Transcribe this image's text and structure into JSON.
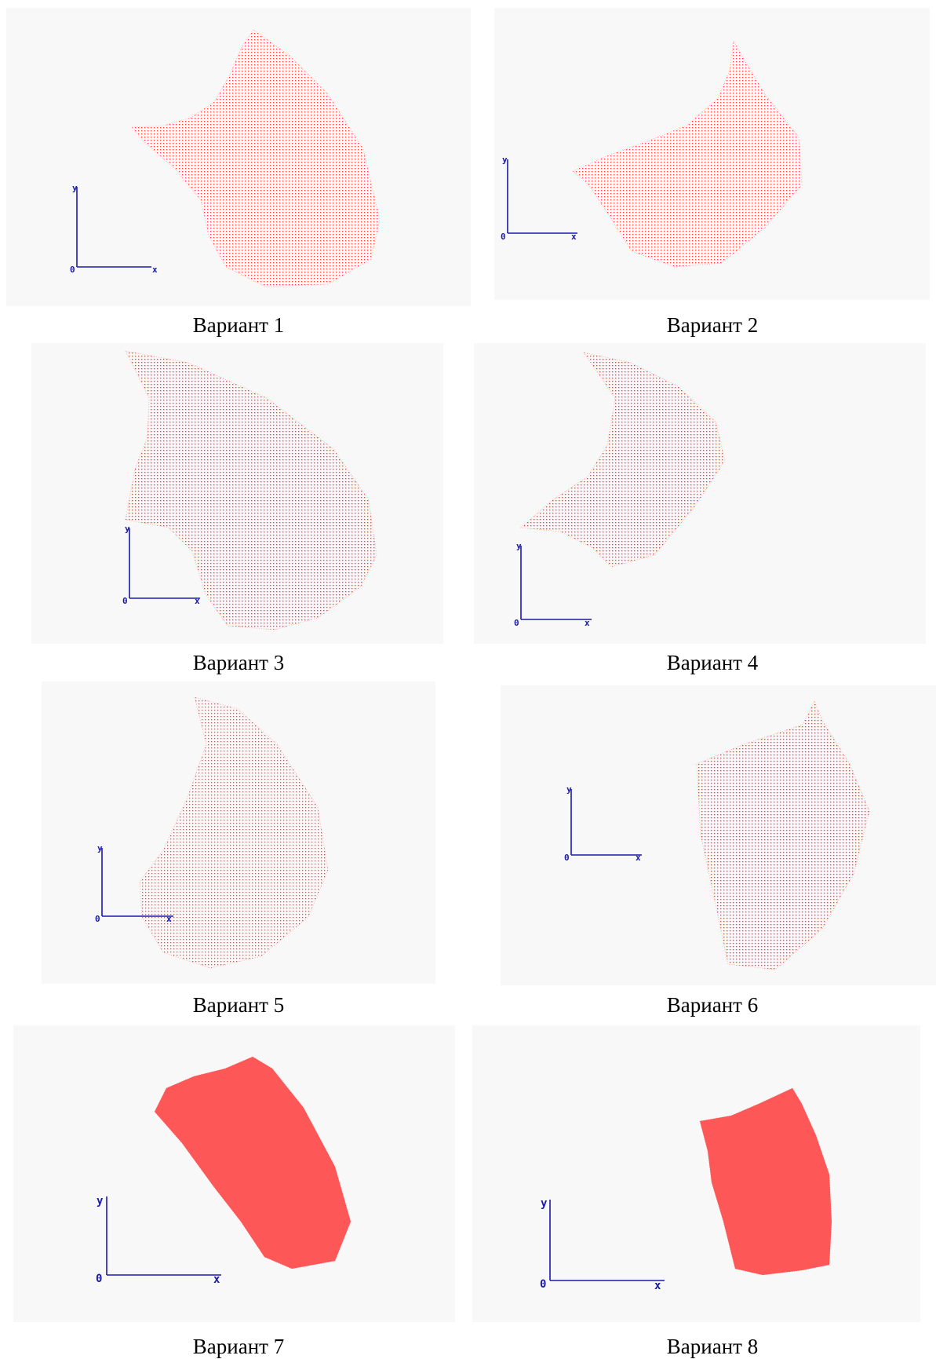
{
  "colors": {
    "points": "#ff3b3b",
    "axes": "#1a1aa8",
    "panel_bg": "#f8f8f8"
  },
  "axis_labels": {
    "origin": "0",
    "x": "x",
    "y": "y"
  },
  "variants": [
    {
      "caption": "Вариант 1"
    },
    {
      "caption": "Вариант 2"
    },
    {
      "caption": "Вариант 3"
    },
    {
      "caption": "Вариант 4"
    },
    {
      "caption": "Вариант 5"
    },
    {
      "caption": "Вариант 6"
    },
    {
      "caption": "Вариант 7"
    },
    {
      "caption": "Вариант 8"
    }
  ]
}
